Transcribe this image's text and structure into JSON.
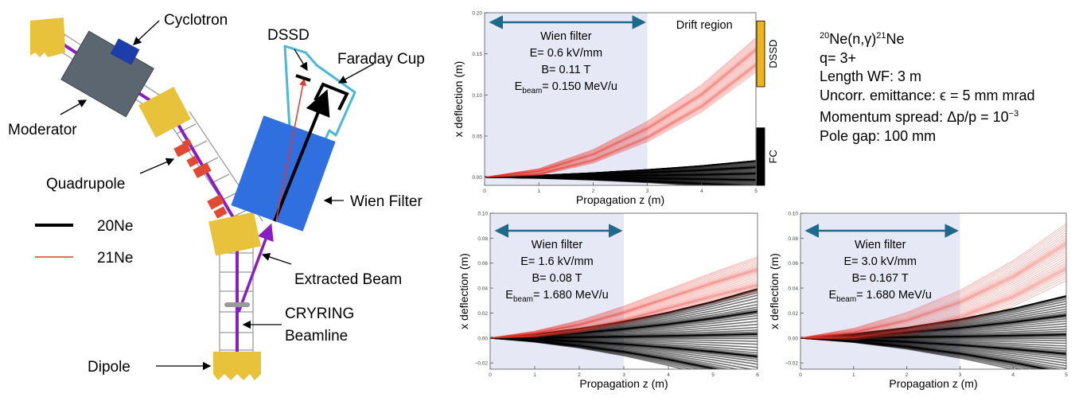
{
  "diagram": {
    "labels": {
      "cyclotron": "Cyclotron",
      "moderator": "Moderator",
      "quadrupole": "Quadrupole",
      "dssd": "DSSD",
      "faraday_cup": "Faraday Cup",
      "wien_filter": "Wien Filter",
      "extracted_beam": "Extracted Beam",
      "beamline_1": "CRYRING",
      "beamline_2": "Beamline",
      "dipole": "Dipole"
    },
    "legend": [
      {
        "label": "20Ne",
        "color": "#000000"
      },
      {
        "label": "21Ne",
        "color": "#e8362a"
      }
    ],
    "colors": {
      "beam": "#8a1cc4",
      "magnet": "#e9c23b",
      "moderator": "#5c6670",
      "cyclotron": "#1d3ea8",
      "quadrupole": "#e04a33",
      "wien_filter": "#2f6fe0",
      "chamber": "#4ab8d8",
      "ne20": "#000000",
      "ne21": "#e8362a"
    }
  },
  "parameters": {
    "reaction": {
      "pre_A": "20",
      "pre_text": "Ne(n,γ)",
      "post_A": "21",
      "post_text": "Ne"
    },
    "charge": "q= 3+",
    "length": "Length WF: 3 m",
    "emittance": "Uncorr. emittance: ϵ = 5 mm mrad",
    "momentum_label": "Momentum spread: Δp/p = 10",
    "momentum_exp": "−3",
    "pole_gap": "Pole gap: 100 mm"
  },
  "chart_data": [
    {
      "type": "line",
      "xlabel": "Propagation z (m)",
      "ylabel": "x deflection (m)",
      "xlim": [
        0,
        5
      ],
      "ylim": [
        -0.01,
        0.2
      ],
      "xticks": [
        "0",
        "1",
        "2",
        "3",
        "4",
        "5"
      ],
      "yticks": [
        "0.00",
        "0.05",
        "0.10",
        "0.15",
        "0.20"
      ],
      "wien_region": [
        0,
        3
      ],
      "wien_title": "Wien filter",
      "wien_E": "E= 0.6 kV/mm",
      "wien_B": "B= 0.11 T",
      "wien_Ebeam_pre": "E",
      "wien_Ebeam_sub": "beam",
      "wien_Ebeam_post": "= 0.150 MeV/u",
      "drift_label": "Drift region",
      "detectors": [
        {
          "label": "DSSD",
          "range": [
            0.11,
            0.19
          ],
          "color": "#f0b41c"
        },
        {
          "label": "FC",
          "range": [
            -0.01,
            0.06
          ],
          "color": "#000000"
        }
      ],
      "series": [
        {
          "name": "21Ne",
          "color": "#e8362a",
          "z": [
            0,
            1,
            2,
            3,
            4,
            5
          ],
          "x": [
            0,
            0.006,
            0.025,
            0.055,
            0.095,
            0.148
          ],
          "spread_end": 0.02
        },
        {
          "name": "20Ne",
          "color": "#000000",
          "z": [
            0,
            1,
            2,
            3,
            4,
            5
          ],
          "x": [
            0,
            0.0005,
            0.001,
            0.0015,
            0.002,
            0.003
          ],
          "spread_end": 0.018
        }
      ]
    },
    {
      "type": "line",
      "xlabel": "Propagation z (m)",
      "ylabel": "x deflection (m)",
      "xlim": [
        0,
        6
      ],
      "ylim": [
        -0.025,
        0.1
      ],
      "xticks": [
        "0",
        "1",
        "2",
        "3",
        "4",
        "5",
        "6"
      ],
      "yticks": [
        "−0.02",
        "0.00",
        "0.02",
        "0.04",
        "0.06",
        "0.08",
        "0.10"
      ],
      "wien_region": [
        0,
        3
      ],
      "wien_title": "Wien filter",
      "wien_E": "E= 1.6 kV/mm",
      "wien_B": "B= 0.08 T",
      "wien_Ebeam_pre": "E",
      "wien_Ebeam_sub": "beam",
      "wien_Ebeam_post": "= 1.680 MeV/u",
      "series": [
        {
          "name": "21Ne",
          "color": "#e8362a",
          "z": [
            0,
            1,
            2,
            3,
            4,
            5,
            6
          ],
          "x": [
            0,
            0.003,
            0.009,
            0.018,
            0.029,
            0.04,
            0.05
          ],
          "spread_end": 0.014
        },
        {
          "name": "20Ne",
          "color": "#000000",
          "z": [
            0,
            1,
            2,
            3,
            4,
            5,
            6
          ],
          "x": [
            0,
            0,
            0,
            0,
            0,
            0,
            0
          ],
          "spread_end": 0.042
        }
      ]
    },
    {
      "type": "line",
      "xlabel": "Propagation z (m)",
      "ylabel": "x deflection (m)",
      "xlim": [
        0,
        5
      ],
      "ylim": [
        -0.025,
        0.1
      ],
      "xticks": [
        "0",
        "1",
        "2",
        "3",
        "4",
        "5"
      ],
      "yticks": [
        "−0.02",
        "0.00",
        "0.02",
        "0.04",
        "0.06",
        "0.08",
        "0.10"
      ],
      "wien_region": [
        0,
        3
      ],
      "wien_title": "Wien filter",
      "wien_E": "E= 3.0 kV/mm",
      "wien_B": "B= 0.167 T",
      "wien_Ebeam_pre": "E",
      "wien_Ebeam_sub": "beam",
      "wien_Ebeam_post": "= 1.680 MeV/u",
      "series": [
        {
          "name": "21Ne",
          "color": "#e8362a",
          "z": [
            0,
            1,
            2,
            3,
            4,
            5
          ],
          "x": [
            0,
            0.003,
            0.011,
            0.024,
            0.043,
            0.068
          ],
          "spread_end": 0.022
        },
        {
          "name": "20Ne",
          "color": "#000000",
          "z": [
            0,
            1,
            2,
            3,
            4,
            5
          ],
          "x": [
            0,
            0,
            0,
            0,
            0,
            0
          ],
          "spread_end": 0.036
        }
      ]
    }
  ]
}
